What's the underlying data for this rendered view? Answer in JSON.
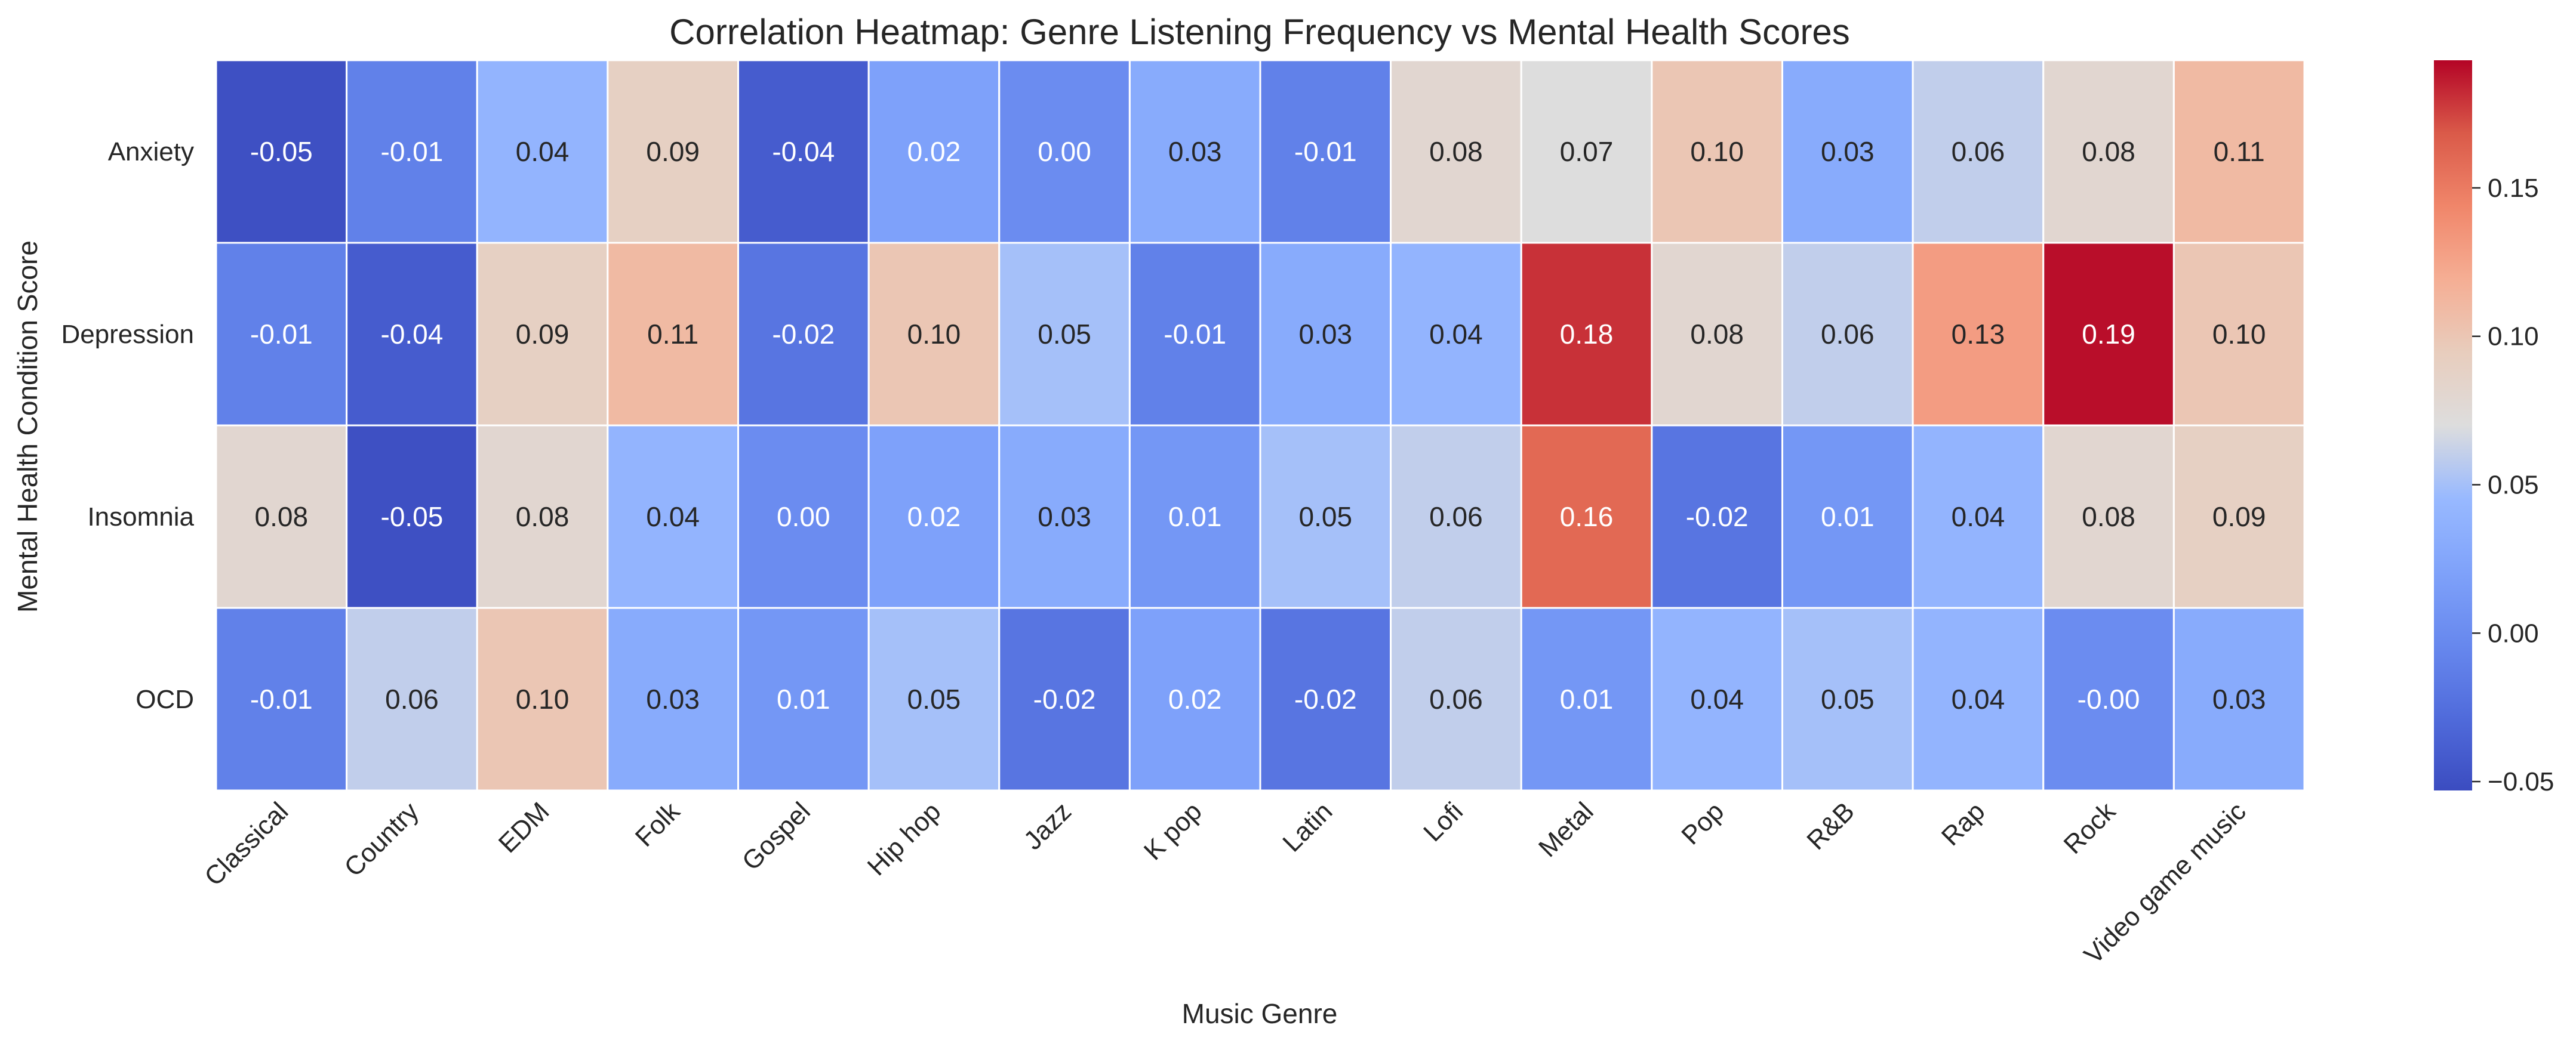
{
  "chart_data": {
    "type": "heatmap",
    "title": "Correlation Heatmap: Genre Listening Frequency vs Mental Health Scores",
    "xlabel": "Music Genre",
    "ylabel": "Mental Health Condition Score",
    "x_categories": [
      "Classical",
      "Country",
      "EDM",
      "Folk",
      "Gospel",
      "Hip hop",
      "Jazz",
      "K pop",
      "Latin",
      "Lofi",
      "Metal",
      "Pop",
      "R&B",
      "Rap",
      "Rock",
      "Video game music"
    ],
    "y_categories": [
      "Anxiety",
      "Depression",
      "Insomnia",
      "OCD"
    ],
    "values": [
      [
        -0.05,
        -0.01,
        0.04,
        0.09,
        -0.04,
        0.02,
        0.0,
        0.03,
        -0.01,
        0.08,
        0.07,
        0.1,
        0.03,
        0.06,
        0.08,
        0.11
      ],
      [
        -0.01,
        -0.04,
        0.09,
        0.11,
        -0.02,
        0.1,
        0.05,
        -0.01,
        0.03,
        0.04,
        0.18,
        0.08,
        0.06,
        0.13,
        0.19,
        0.1
      ],
      [
        0.08,
        -0.05,
        0.08,
        0.04,
        0.0,
        0.02,
        0.03,
        0.01,
        0.05,
        0.06,
        0.16,
        -0.02,
        0.01,
        0.04,
        0.08,
        0.09
      ],
      [
        -0.01,
        0.06,
        0.1,
        0.03,
        0.01,
        0.05,
        -0.02,
        0.02,
        -0.02,
        0.06,
        0.01,
        0.04,
        0.05,
        0.04,
        -0.0,
        0.03
      ]
    ],
    "cell_labels": [
      [
        "-0.05",
        "-0.01",
        "0.04",
        "0.09",
        "-0.04",
        "0.02",
        "0.00",
        "0.03",
        "-0.01",
        "0.08",
        "0.07",
        "0.10",
        "0.03",
        "0.06",
        "0.08",
        "0.11"
      ],
      [
        "-0.01",
        "-0.04",
        "0.09",
        "0.11",
        "-0.02",
        "0.10",
        "0.05",
        "-0.01",
        "0.03",
        "0.04",
        "0.18",
        "0.08",
        "0.06",
        "0.13",
        "0.19",
        "0.10"
      ],
      [
        "0.08",
        "-0.05",
        "0.08",
        "0.04",
        "0.00",
        "0.02",
        "0.03",
        "0.01",
        "0.05",
        "0.06",
        "0.16",
        "-0.02",
        "0.01",
        "0.04",
        "0.08",
        "0.09"
      ],
      [
        "-0.01",
        "0.06",
        "0.10",
        "0.03",
        "0.01",
        "0.05",
        "-0.02",
        "0.02",
        "-0.02",
        "0.06",
        "0.01",
        "0.04",
        "0.05",
        "0.04",
        "-0.00",
        "0.03"
      ]
    ],
    "colormap": "coolwarm",
    "vmin": -0.053,
    "vmax": 0.193,
    "colorbar_ticks": [
      -0.05,
      0.0,
      0.05,
      0.1,
      0.15
    ],
    "colorbar_tick_labels": [
      "−0.05",
      "0.00",
      "0.05",
      "0.10",
      "0.15"
    ],
    "gridlines": false,
    "colors": {
      "cold": "#3b4cc0",
      "neutral": "#dddddd",
      "hot": "#b40426",
      "cell_border": "#ffffff",
      "text_dark": "#262626",
      "text_light": "#ffffff"
    }
  }
}
